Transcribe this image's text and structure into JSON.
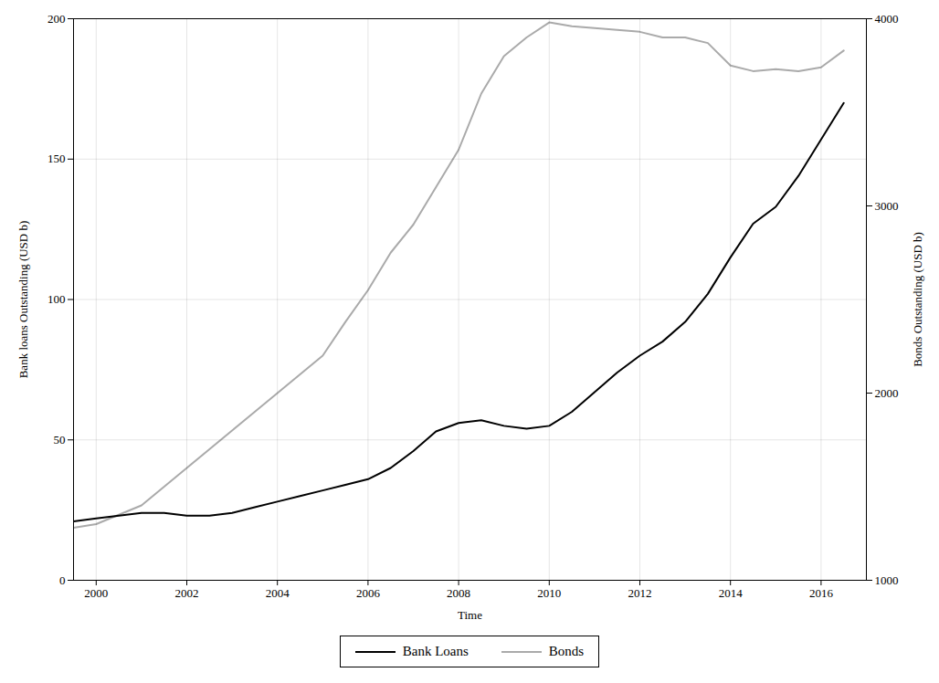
{
  "chart_data": {
    "type": "line",
    "x": [
      1999.5,
      2000.0,
      2000.5,
      2001.0,
      2001.5,
      2002.0,
      2002.5,
      2003.0,
      2003.5,
      2004.0,
      2004.5,
      2005.0,
      2005.5,
      2006.0,
      2006.5,
      2007.0,
      2007.5,
      2008.0,
      2008.5,
      2009.0,
      2009.5,
      2010.0,
      2010.5,
      2011.0,
      2011.5,
      2012.0,
      2012.5,
      2013.0,
      2013.5,
      2014.0,
      2014.5,
      2015.0,
      2015.5,
      2016.0,
      2016.5
    ],
    "xlabel": "Time",
    "ylabel": "Bank loans Outstanding (USD b)",
    "y2label": "Bonds Outstanding (USD b)",
    "xlim": [
      1999.5,
      2017.0
    ],
    "xticks": [
      2000,
      2002,
      2004,
      2006,
      2008,
      2010,
      2012,
      2014,
      2016
    ],
    "ylim": [
      0,
      200
    ],
    "yticks": [
      0,
      50,
      100,
      150,
      200
    ],
    "y2lim": [
      1000,
      4000
    ],
    "y2ticks": [
      1000,
      2000,
      3000,
      4000
    ],
    "grid": true,
    "legend": "bottom",
    "series": [
      {
        "name": "Bank Loans",
        "color": "#000000",
        "values": [
          21,
          22,
          23,
          24,
          24,
          23,
          23,
          24,
          26,
          28,
          30,
          32,
          34,
          36,
          40,
          46,
          53,
          56,
          57,
          55,
          54,
          55,
          60,
          67,
          74,
          80,
          85,
          92,
          102,
          115,
          127,
          133,
          144,
          157,
          170
        ]
      },
      {
        "name": "Bonds",
        "color": "#aaaaaa",
        "axis": "y2",
        "values": [
          1280,
          1300,
          1350,
          1400,
          1500,
          1600,
          1700,
          1800,
          1900,
          2000,
          2100,
          2200,
          2380,
          2550,
          2750,
          2900,
          3100,
          3300,
          3600,
          3800,
          3900,
          3980,
          3960,
          3950,
          3940,
          3930,
          3900,
          3900,
          3870,
          3750,
          3720,
          3730,
          3720,
          3740,
          3830
        ]
      }
    ]
  }
}
